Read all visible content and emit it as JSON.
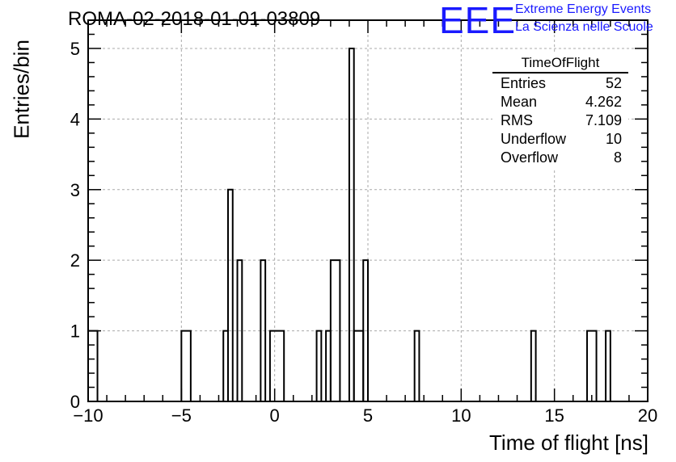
{
  "title": "ROMA-02-2018-01-01-03809",
  "logo": {
    "mark": "EEE",
    "line1": "Extreme Energy Events",
    "line2": "La Scienza nelle Scuole",
    "color": "#1a1aff"
  },
  "stats": {
    "title": "TimeOfFlight",
    "rows": [
      {
        "key": "Entries",
        "value": "52"
      },
      {
        "key": "Mean",
        "value": "4.262"
      },
      {
        "key": "RMS",
        "value": "7.109"
      },
      {
        "key": "Underflow",
        "value": "10"
      },
      {
        "key": "Overflow",
        "value": "8"
      }
    ]
  },
  "chart_data": {
    "type": "bar",
    "title": "ROMA-02-2018-01-01-03809",
    "xlabel": "Time of flight [ns]",
    "ylabel": "Entries/bin",
    "xlim": [
      -10,
      20
    ],
    "ylim": [
      0,
      5.4
    ],
    "bin_width": 0.5,
    "xticks": [
      -10,
      -5,
      0,
      5,
      10,
      15,
      20
    ],
    "xtick_labels": [
      "−10",
      "−5",
      "0",
      "5",
      "10",
      "15",
      "20"
    ],
    "yticks": [
      0,
      1,
      2,
      3,
      4,
      5
    ],
    "ytick_labels": [
      "0",
      "1",
      "2",
      "3",
      "4",
      "5"
    ],
    "grid": true,
    "bins": [
      {
        "x0": -10,
        "x1": -9.5,
        "count": 1
      },
      {
        "x0": -5,
        "x1": -4.5,
        "count": 1
      },
      {
        "x0": -2.75,
        "x1": -2.5,
        "count": 1
      },
      {
        "x0": -2.5,
        "x1": -2.25,
        "count": 3
      },
      {
        "x0": -2,
        "x1": -1.75,
        "count": 2
      },
      {
        "x0": -0.75,
        "x1": -0.5,
        "count": 2
      },
      {
        "x0": -0.25,
        "x1": 0.5,
        "count": 1
      },
      {
        "x0": 2.25,
        "x1": 2.5,
        "count": 1
      },
      {
        "x0": 2.75,
        "x1": 3,
        "count": 1
      },
      {
        "x0": 3,
        "x1": 3.5,
        "count": 2
      },
      {
        "x0": 4,
        "x1": 4.25,
        "count": 5
      },
      {
        "x0": 4.25,
        "x1": 4.75,
        "count": 1
      },
      {
        "x0": 4.75,
        "x1": 5,
        "count": 2
      },
      {
        "x0": 7.5,
        "x1": 7.75,
        "count": 1
      },
      {
        "x0": 13.75,
        "x1": 14,
        "count": 1
      },
      {
        "x0": 16.75,
        "x1": 17.25,
        "count": 1
      },
      {
        "x0": 17.75,
        "x1": 18,
        "count": 1
      }
    ]
  }
}
